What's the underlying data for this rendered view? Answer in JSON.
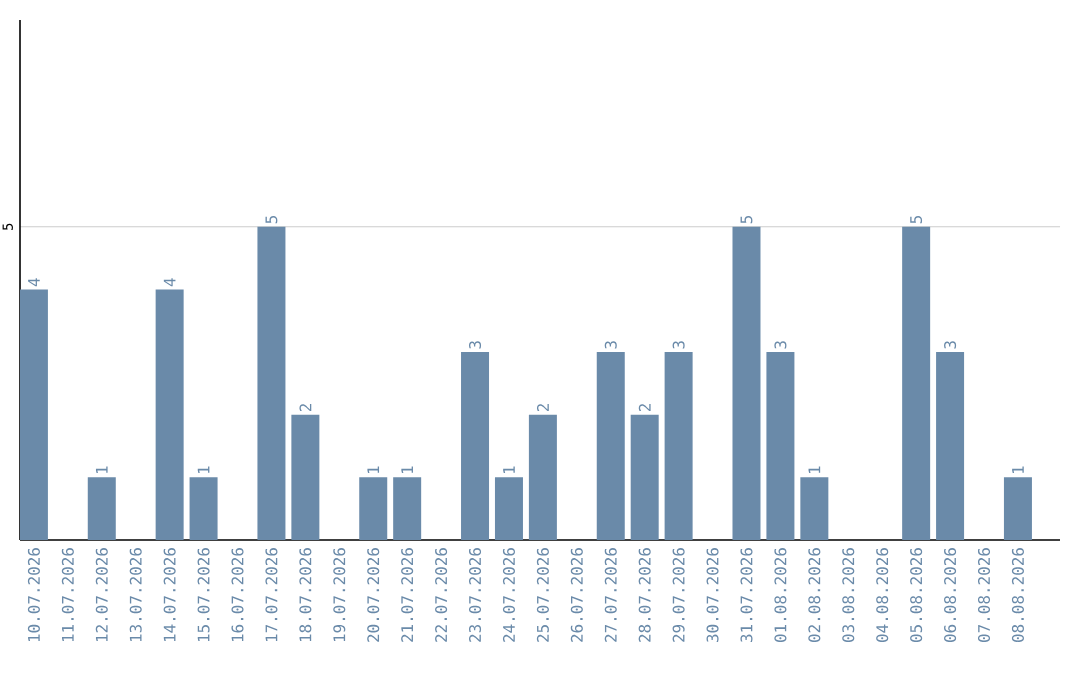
{
  "chart_data": {
    "type": "bar",
    "categories": [
      "10.07.2026",
      "11.07.2026",
      "12.07.2026",
      "13.07.2026",
      "14.07.2026",
      "15.07.2026",
      "16.07.2026",
      "17.07.2026",
      "18.07.2026",
      "19.07.2026",
      "20.07.2026",
      "21.07.2026",
      "22.07.2026",
      "23.07.2026",
      "24.07.2026",
      "25.07.2026",
      "26.07.2026",
      "27.07.2026",
      "28.07.2026",
      "29.07.2026",
      "30.07.2026",
      "31.07.2026",
      "01.08.2026",
      "02.08.2026",
      "03.08.2026",
      "04.08.2026",
      "05.08.2026",
      "06.08.2026",
      "07.08.2026",
      "08.08.2026"
    ],
    "values": [
      4,
      null,
      1,
      null,
      4,
      1,
      null,
      5,
      2,
      null,
      1,
      1,
      null,
      3,
      1,
      2,
      null,
      3,
      2,
      3,
      null,
      5,
      3,
      1,
      null,
      null,
      5,
      3,
      null,
      1
    ],
    "color": "#6a8aa9",
    "ylim": [
      0,
      8.3
    ],
    "yticks": [
      5
    ],
    "grid": "y",
    "data_labels": true
  }
}
